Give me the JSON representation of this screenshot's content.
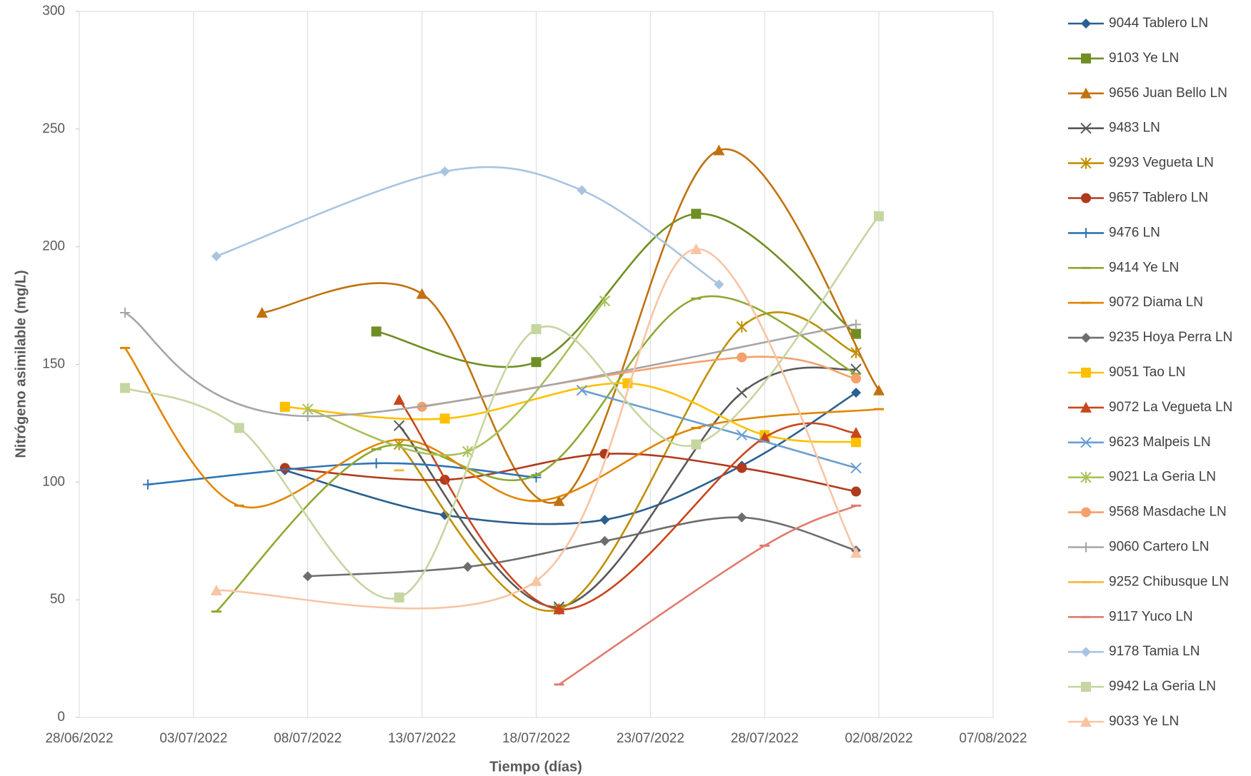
{
  "chart_data": {
    "type": "scatter-smooth",
    "xlabel": "Tiempo (días)",
    "ylabel": "Nitrógeno asimilable  (mg/L)",
    "xlim": [
      "28/06/2022",
      "07/08/2022"
    ],
    "xticks": [
      "28/06/2022",
      "03/07/2022",
      "08/07/2022",
      "13/07/2022",
      "18/07/2022",
      "23/07/2022",
      "28/07/2022",
      "02/08/2022",
      "07/08/2022"
    ],
    "ylim": [
      0,
      300
    ],
    "yticks": [
      0,
      50,
      100,
      150,
      200,
      250,
      300
    ],
    "grid": "x",
    "legend": "right",
    "series": [
      {
        "name": "9044  Tablero LN",
        "color": "#2a5f8f",
        "marker": "diamond",
        "x": [
          "07/07/2022",
          "14/07/2022",
          "21/07/2022",
          "27/07/2022",
          "01/08/2022"
        ],
        "values": [
          105,
          86,
          84,
          107,
          138
        ]
      },
      {
        "name": "9103 Ye LN",
        "color": "#6f8f24",
        "marker": "square",
        "x": [
          "11/07/2022",
          "18/07/2022",
          "25/07/2022",
          "01/08/2022"
        ],
        "values": [
          164,
          151,
          214,
          163
        ]
      },
      {
        "name": "9656 Juan Bello LN",
        "color": "#c0720f",
        "marker": "triangle",
        "x": [
          "06/07/2022",
          "13/07/2022",
          "19/07/2022",
          "26/07/2022",
          "02/08/2022"
        ],
        "values": [
          172,
          180,
          92,
          241,
          139
        ]
      },
      {
        "name": "9483  LN",
        "color": "#595959",
        "marker": "x",
        "x": [
          "12/07/2022",
          "19/07/2022",
          "27/07/2022",
          "01/08/2022"
        ],
        "values": [
          124,
          47,
          138,
          148
        ]
      },
      {
        "name": "9293 Vegueta LN",
        "color": "#bf9000",
        "marker": "star",
        "x": [
          "12/07/2022",
          "19/07/2022",
          "27/07/2022",
          "01/08/2022"
        ],
        "values": [
          116,
          46,
          166,
          155
        ]
      },
      {
        "name": "9657 Tablero LN",
        "color": "#b03a1c",
        "marker": "circle",
        "x": [
          "07/07/2022",
          "14/07/2022",
          "21/07/2022",
          "27/07/2022",
          "01/08/2022"
        ],
        "values": [
          106,
          101,
          112,
          106,
          96
        ]
      },
      {
        "name": "9476 LN",
        "color": "#2e75b6",
        "marker": "plus",
        "x": [
          "01/07/2022",
          "11/07/2022",
          "18/07/2022"
        ],
        "values": [
          99,
          108,
          102
        ]
      },
      {
        "name": "9414 Ye LN",
        "color": "#8fa832",
        "marker": "dash",
        "x": [
          "04/07/2022",
          "11/07/2022",
          "18/07/2022",
          "25/07/2022",
          "01/08/2022"
        ],
        "values": [
          45,
          114,
          103,
          178,
          146
        ]
      },
      {
        "name": "9072 Diama LN",
        "color": "#e08600",
        "marker": "dash",
        "x": [
          "30/06/2022",
          "05/07/2022",
          "12/07/2022",
          "18/07/2022",
          "25/07/2022",
          "02/08/2022"
        ],
        "values": [
          157,
          90,
          118,
          92,
          123,
          131
        ]
      },
      {
        "name": "9235 Hoya Perra LN",
        "color": "#6d6d6d",
        "marker": "diamond",
        "x": [
          "08/07/2022",
          "15/07/2022",
          "21/07/2022",
          "27/07/2022",
          "01/08/2022"
        ],
        "values": [
          60,
          64,
          75,
          85,
          71
        ]
      },
      {
        "name": "9051 Tao LN",
        "color": "#ffc000",
        "marker": "square",
        "x": [
          "07/07/2022",
          "14/07/2022",
          "22/07/2022",
          "28/07/2022",
          "01/08/2022"
        ],
        "values": [
          132,
          127,
          142,
          120,
          117
        ]
      },
      {
        "name": "9072 La Vegueta LN",
        "color": "#c8461e",
        "marker": "triangle",
        "x": [
          "12/07/2022",
          "19/07/2022",
          "28/07/2022",
          "01/08/2022"
        ],
        "values": [
          135,
          46,
          119,
          121
        ]
      },
      {
        "name": "9623 Malpeis LN",
        "color": "#6a9ed0",
        "marker": "x",
        "x": [
          "20/07/2022",
          "27/07/2022",
          "01/08/2022"
        ],
        "values": [
          139,
          120,
          106
        ]
      },
      {
        "name": "9021 La Geria LN",
        "color": "#a9c15a",
        "marker": "star",
        "x": [
          "08/07/2022",
          "15/07/2022",
          "21/07/2022"
        ],
        "values": [
          131,
          113,
          177
        ]
      },
      {
        "name": "9568 Masdache LN",
        "color": "#f4a06a",
        "marker": "circle",
        "x": [
          "13/07/2022",
          "27/07/2022",
          "01/08/2022"
        ],
        "values": [
          132,
          153,
          144
        ]
      },
      {
        "name": "9060 Cartero LN",
        "color": "#a6a6a6",
        "marker": "plus",
        "x": [
          "30/06/2022",
          "08/07/2022",
          "01/08/2022"
        ],
        "values": [
          172,
          128,
          167
        ]
      },
      {
        "name": "9252 Chibusque LN",
        "color": "#f5b83c",
        "marker": "dash",
        "x": [
          "12/07/2022"
        ],
        "values": [
          105
        ]
      },
      {
        "name": "9117 Yuco LN",
        "color": "#e07b6e",
        "marker": "dash",
        "x": [
          "19/07/2022",
          "28/07/2022",
          "01/08/2022"
        ],
        "values": [
          14,
          73,
          90
        ]
      },
      {
        "name": "9178 Tamia LN",
        "color": "#a9c4e0",
        "marker": "diamond",
        "x": [
          "04/07/2022",
          "14/07/2022",
          "20/07/2022",
          "26/07/2022"
        ],
        "values": [
          196,
          232,
          224,
          184
        ]
      },
      {
        "name": "9942 La Geria LN",
        "color": "#c5d6a1",
        "marker": "square",
        "x": [
          "30/06/2022",
          "05/07/2022",
          "12/07/2022",
          "18/07/2022",
          "25/07/2022",
          "02/08/2022"
        ],
        "values": [
          140,
          123,
          51,
          165,
          116,
          213
        ]
      },
      {
        "name": "9033 Ye LN",
        "color": "#f8c4a4",
        "marker": "triangle",
        "x": [
          "04/07/2022",
          "18/07/2022",
          "25/07/2022",
          "01/08/2022"
        ],
        "values": [
          54,
          58,
          199,
          70
        ]
      }
    ]
  }
}
